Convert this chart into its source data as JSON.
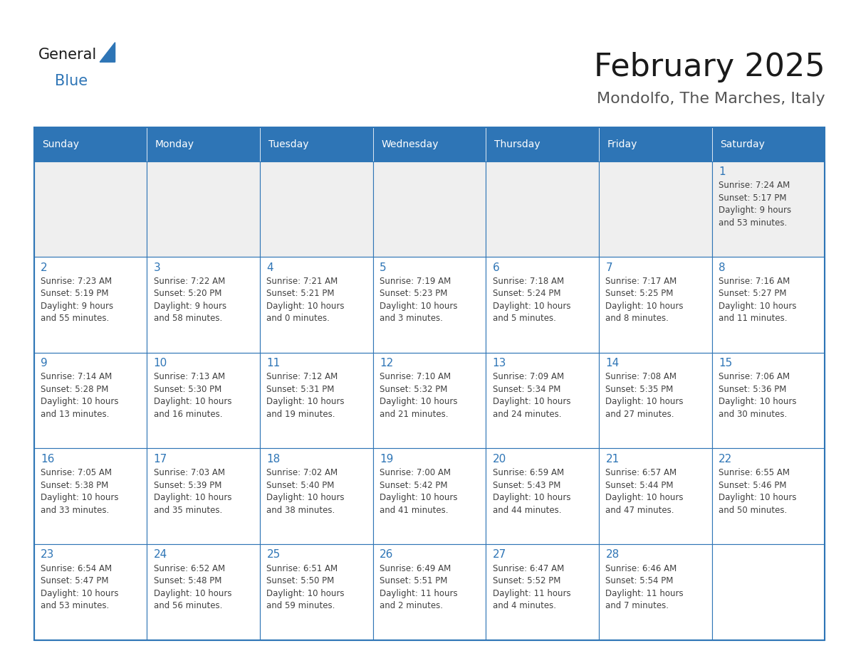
{
  "title": "February 2025",
  "subtitle": "Mondolfo, The Marches, Italy",
  "header_bg": "#2E75B6",
  "header_text_color": "#FFFFFF",
  "cell_bg_odd": "#FFFFFF",
  "cell_bg_row1": "#EFEFEF",
  "border_color": "#2E75B6",
  "day_number_color": "#2E75B6",
  "cell_text_color": "#404040",
  "title_color": "#1a1a1a",
  "days_of_week": [
    "Sunday",
    "Monday",
    "Tuesday",
    "Wednesday",
    "Thursday",
    "Friday",
    "Saturday"
  ],
  "weeks": [
    [
      {
        "day": "",
        "info": ""
      },
      {
        "day": "",
        "info": ""
      },
      {
        "day": "",
        "info": ""
      },
      {
        "day": "",
        "info": ""
      },
      {
        "day": "",
        "info": ""
      },
      {
        "day": "",
        "info": ""
      },
      {
        "day": "1",
        "info": "Sunrise: 7:24 AM\nSunset: 5:17 PM\nDaylight: 9 hours\nand 53 minutes."
      }
    ],
    [
      {
        "day": "2",
        "info": "Sunrise: 7:23 AM\nSunset: 5:19 PM\nDaylight: 9 hours\nand 55 minutes."
      },
      {
        "day": "3",
        "info": "Sunrise: 7:22 AM\nSunset: 5:20 PM\nDaylight: 9 hours\nand 58 minutes."
      },
      {
        "day": "4",
        "info": "Sunrise: 7:21 AM\nSunset: 5:21 PM\nDaylight: 10 hours\nand 0 minutes."
      },
      {
        "day": "5",
        "info": "Sunrise: 7:19 AM\nSunset: 5:23 PM\nDaylight: 10 hours\nand 3 minutes."
      },
      {
        "day": "6",
        "info": "Sunrise: 7:18 AM\nSunset: 5:24 PM\nDaylight: 10 hours\nand 5 minutes."
      },
      {
        "day": "7",
        "info": "Sunrise: 7:17 AM\nSunset: 5:25 PM\nDaylight: 10 hours\nand 8 minutes."
      },
      {
        "day": "8",
        "info": "Sunrise: 7:16 AM\nSunset: 5:27 PM\nDaylight: 10 hours\nand 11 minutes."
      }
    ],
    [
      {
        "day": "9",
        "info": "Sunrise: 7:14 AM\nSunset: 5:28 PM\nDaylight: 10 hours\nand 13 minutes."
      },
      {
        "day": "10",
        "info": "Sunrise: 7:13 AM\nSunset: 5:30 PM\nDaylight: 10 hours\nand 16 minutes."
      },
      {
        "day": "11",
        "info": "Sunrise: 7:12 AM\nSunset: 5:31 PM\nDaylight: 10 hours\nand 19 minutes."
      },
      {
        "day": "12",
        "info": "Sunrise: 7:10 AM\nSunset: 5:32 PM\nDaylight: 10 hours\nand 21 minutes."
      },
      {
        "day": "13",
        "info": "Sunrise: 7:09 AM\nSunset: 5:34 PM\nDaylight: 10 hours\nand 24 minutes."
      },
      {
        "day": "14",
        "info": "Sunrise: 7:08 AM\nSunset: 5:35 PM\nDaylight: 10 hours\nand 27 minutes."
      },
      {
        "day": "15",
        "info": "Sunrise: 7:06 AM\nSunset: 5:36 PM\nDaylight: 10 hours\nand 30 minutes."
      }
    ],
    [
      {
        "day": "16",
        "info": "Sunrise: 7:05 AM\nSunset: 5:38 PM\nDaylight: 10 hours\nand 33 minutes."
      },
      {
        "day": "17",
        "info": "Sunrise: 7:03 AM\nSunset: 5:39 PM\nDaylight: 10 hours\nand 35 minutes."
      },
      {
        "day": "18",
        "info": "Sunrise: 7:02 AM\nSunset: 5:40 PM\nDaylight: 10 hours\nand 38 minutes."
      },
      {
        "day": "19",
        "info": "Sunrise: 7:00 AM\nSunset: 5:42 PM\nDaylight: 10 hours\nand 41 minutes."
      },
      {
        "day": "20",
        "info": "Sunrise: 6:59 AM\nSunset: 5:43 PM\nDaylight: 10 hours\nand 44 minutes."
      },
      {
        "day": "21",
        "info": "Sunrise: 6:57 AM\nSunset: 5:44 PM\nDaylight: 10 hours\nand 47 minutes."
      },
      {
        "day": "22",
        "info": "Sunrise: 6:55 AM\nSunset: 5:46 PM\nDaylight: 10 hours\nand 50 minutes."
      }
    ],
    [
      {
        "day": "23",
        "info": "Sunrise: 6:54 AM\nSunset: 5:47 PM\nDaylight: 10 hours\nand 53 minutes."
      },
      {
        "day": "24",
        "info": "Sunrise: 6:52 AM\nSunset: 5:48 PM\nDaylight: 10 hours\nand 56 minutes."
      },
      {
        "day": "25",
        "info": "Sunrise: 6:51 AM\nSunset: 5:50 PM\nDaylight: 10 hours\nand 59 minutes."
      },
      {
        "day": "26",
        "info": "Sunrise: 6:49 AM\nSunset: 5:51 PM\nDaylight: 11 hours\nand 2 minutes."
      },
      {
        "day": "27",
        "info": "Sunrise: 6:47 AM\nSunset: 5:52 PM\nDaylight: 11 hours\nand 4 minutes."
      },
      {
        "day": "28",
        "info": "Sunrise: 6:46 AM\nSunset: 5:54 PM\nDaylight: 11 hours\nand 7 minutes."
      },
      {
        "day": "",
        "info": ""
      }
    ]
  ],
  "logo_general_color": "#1a1a1a",
  "logo_blue_color": "#2E75B6",
  "header_fontsize": 10,
  "title_fontsize": 32,
  "subtitle_fontsize": 16,
  "day_num_fontsize": 11,
  "info_fontsize": 8.5,
  "dow_fontsize": 10
}
